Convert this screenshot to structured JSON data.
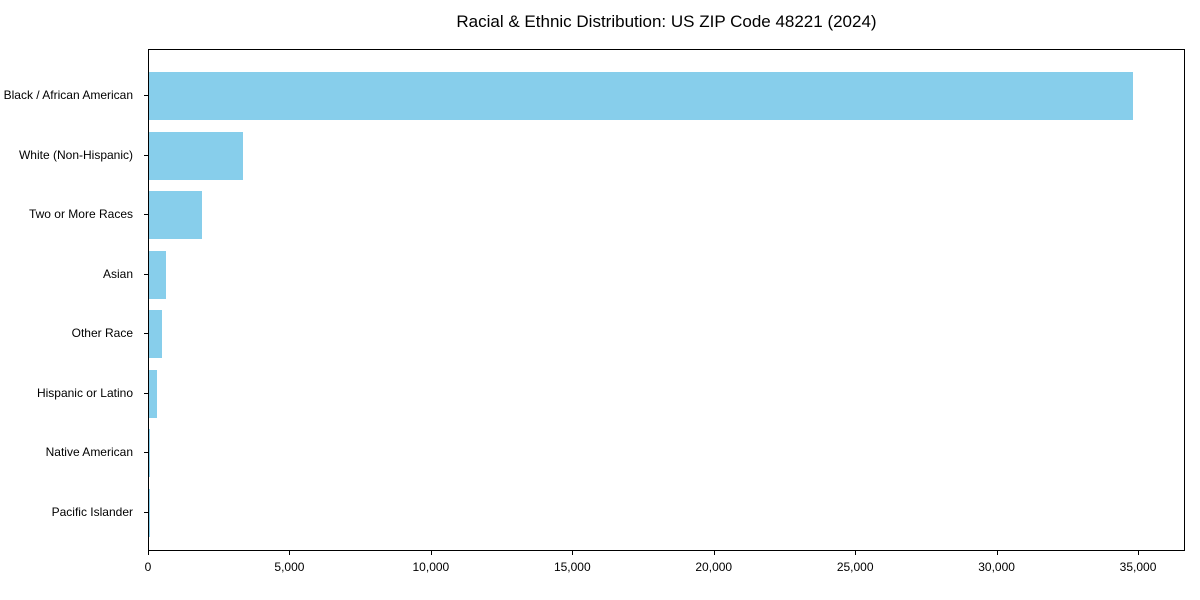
{
  "chart_data": {
    "type": "bar",
    "orientation": "horizontal",
    "title": "Racial & Ethnic Distribution: US ZIP Code 48221 (2024)",
    "categories": [
      "Black / African American",
      "White (Non-Hispanic)",
      "Two or More Races",
      "Asian",
      "Other Race",
      "Hispanic or Latino",
      "Native American",
      "Pacific Islander"
    ],
    "values": [
      34860,
      3330,
      1880,
      590,
      450,
      270,
      40,
      10
    ],
    "xlabel": "",
    "ylabel": "",
    "xlim": [
      0,
      36660
    ],
    "x_ticks": [
      0,
      5000,
      10000,
      15000,
      20000,
      25000,
      30000,
      35000
    ],
    "x_tick_labels": [
      "0",
      "5,000",
      "10,000",
      "15,000",
      "20,000",
      "25,000",
      "30,000",
      "35,000"
    ],
    "bar_color": "#87CEEB",
    "background_color": "#ffffff",
    "spine_color": "#000000",
    "grid": false,
    "legend": null
  }
}
